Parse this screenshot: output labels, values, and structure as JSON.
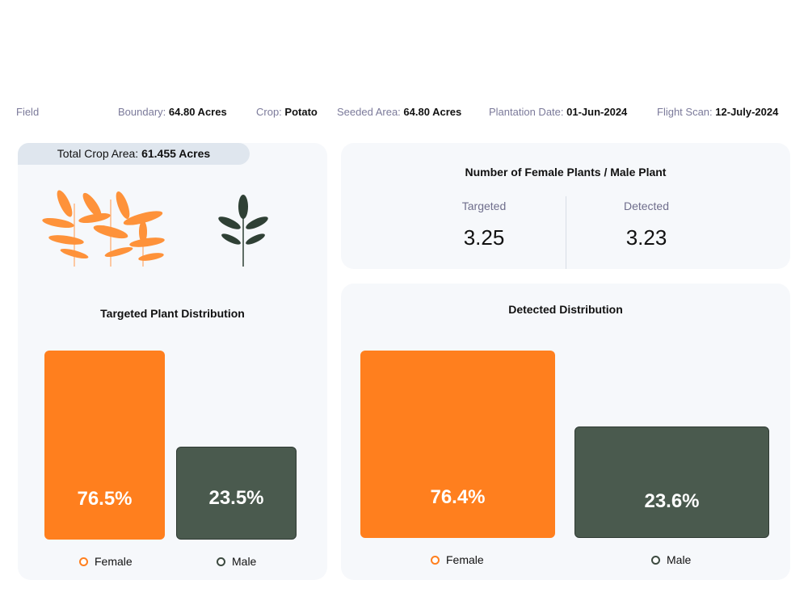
{
  "header": {
    "field_label": "Field",
    "boundary": {
      "label": "Boundary:",
      "value": "64.80 Acres"
    },
    "crop": {
      "label": "Crop:",
      "value": "Potato"
    },
    "seeded_area": {
      "label": "Seeded Area:",
      "value": "64.80 Acres"
    },
    "plantation_date": {
      "label": "Plantation Date:",
      "value": "01-Jun-2024"
    },
    "flight_scan": {
      "label": "Flight Scan:",
      "value": "12-July-2024"
    }
  },
  "total_crop_area": {
    "label": "Total Crop Area:",
    "value": "61.455 Acres"
  },
  "ratio_card": {
    "title": "Number of Female Plants / Male Plant",
    "targeted": {
      "label": "Targeted",
      "value": "3.25"
    },
    "detected": {
      "label": "Detected",
      "value": "3.23"
    }
  },
  "colors": {
    "female": "#ff7f1e",
    "male": "#4a5a4e"
  },
  "chart_data": [
    {
      "type": "bar",
      "title": "Targeted Plant Distribution",
      "categories": [
        "Female",
        "Male"
      ],
      "values": [
        76.5,
        23.5
      ],
      "labels": [
        "76.5%",
        "23.5%"
      ]
    },
    {
      "type": "bar",
      "title": "Detected Distribution",
      "categories": [
        "Female",
        "Male"
      ],
      "values": [
        76.4,
        23.6
      ],
      "labels": [
        "76.4%",
        "23.6%"
      ]
    }
  ]
}
